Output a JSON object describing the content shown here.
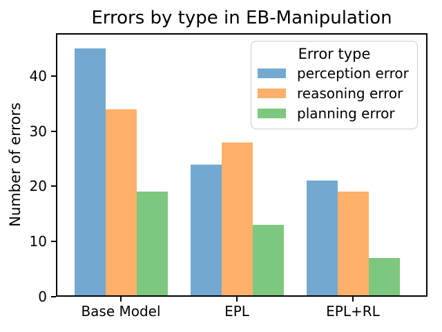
{
  "title": "Errors by type in EB-Manipulation",
  "chart_data": {
    "type": "bar",
    "categories": [
      "Base Model",
      "EPL",
      "EPL+RL"
    ],
    "series": [
      {
        "name": "perception error",
        "color": "#73a9d1",
        "values": [
          45,
          24,
          21
        ]
      },
      {
        "name": "reasoning error",
        "color": "#ffb06a",
        "values": [
          34,
          28,
          19
        ]
      },
      {
        "name": "planning error",
        "color": "#7dc87e",
        "values": [
          19,
          13,
          7
        ]
      }
    ],
    "title": "Errors by type in EB-Manipulation",
    "xlabel": "",
    "ylabel": "Number of errors",
    "ylim": [
      0,
      47.75
    ],
    "yticks": [
      0,
      10,
      20,
      30,
      40
    ],
    "grid": false,
    "legend": {
      "title": "Error type",
      "position": "upper right"
    },
    "colors": {
      "axis": "#000000",
      "legend_border": "#cccccc",
      "background": "#ffffff"
    }
  }
}
